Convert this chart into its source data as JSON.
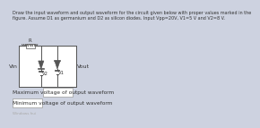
{
  "title_text": "Draw the input waveform and output waveform for the circuit given below with proper values marked in the\nfigure. Assume D1 as germanium and D2 as silicon diodes. Input Vpp=20V, V1=5 V and V2=8 V.",
  "max_label": "Maximum voltage of output waveform",
  "min_label": "Minimum voltage of output waveform",
  "bg_color": "#cdd2e0",
  "circuit_bg": "#ffffff",
  "wire_color": "#555555",
  "text_color": "#333333",
  "label_fontsize": 4.2,
  "title_fontsize": 3.5,
  "R_label": "R",
  "V1_label": "V1",
  "V2_label": "V2",
  "Vin_label": "Vin",
  "Vout_label": "Vout",
  "diode_color": "#555555",
  "box_outline": "#999999"
}
